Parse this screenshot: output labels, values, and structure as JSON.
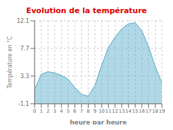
{
  "chart_data": {
    "type": "area",
    "title": "Evolution de la température",
    "x_label": "heure par heure",
    "y_label": "Température en °C",
    "x": [
      0,
      1,
      2,
      3,
      4,
      5,
      6,
      7,
      8,
      9,
      10,
      11,
      12,
      13,
      14,
      15,
      16,
      17,
      18,
      19
    ],
    "values": [
      1.2,
      3.6,
      4.0,
      3.8,
      3.4,
      2.8,
      1.5,
      0.4,
      0.1,
      1.8,
      5.0,
      7.8,
      9.5,
      10.8,
      11.6,
      11.8,
      10.5,
      8.0,
      4.8,
      2.2
    ],
    "color": "#50a8c8",
    "xlim": [
      0,
      19
    ],
    "ylim": [
      -1.1,
      12.1
    ],
    "xticks": [
      0,
      1,
      2,
      3,
      4,
      5,
      6,
      7,
      8,
      9,
      10,
      11,
      12,
      13,
      14,
      15,
      16,
      17,
      18,
      19
    ],
    "yticks": [
      -1.1,
      3.3,
      7.7,
      12.1
    ],
    "grid": true
  }
}
